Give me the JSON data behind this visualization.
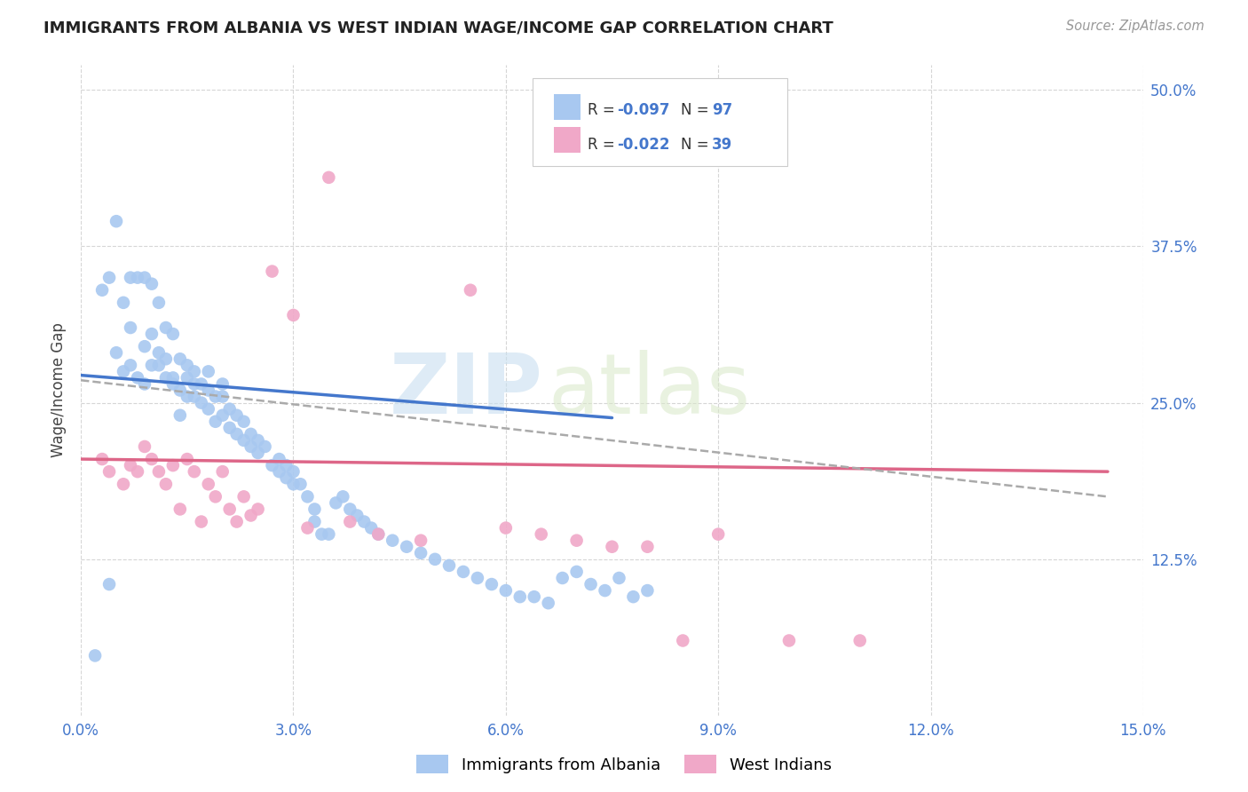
{
  "title": "IMMIGRANTS FROM ALBANIA VS WEST INDIAN WAGE/INCOME GAP CORRELATION CHART",
  "source": "Source: ZipAtlas.com",
  "ylabel": "Wage/Income Gap",
  "legend_label1": "Immigrants from Albania",
  "legend_label2": "West Indians",
  "color_blue": "#a8c8f0",
  "color_pink": "#f0a8c8",
  "color_blue_text": "#4477cc",
  "line_blue": "#4477cc",
  "line_pink": "#dd6688",
  "line_dashed": "#aaaaaa",
  "background": "#ffffff",
  "watermark_zip": "ZIP",
  "watermark_atlas": "atlas",
  "xlim": [
    0.0,
    0.15
  ],
  "ylim": [
    0.0,
    0.52
  ],
  "xtick_positions": [
    0.0,
    0.03,
    0.06,
    0.09,
    0.12,
    0.15
  ],
  "xtick_labels": [
    "0.0%",
    "3.0%",
    "6.0%",
    "9.0%",
    "12.0%",
    "15.0%"
  ],
  "ytick_positions": [
    0.125,
    0.25,
    0.375,
    0.5
  ],
  "ytick_labels": [
    "12.5%",
    "25.0%",
    "37.5%",
    "50.0%"
  ],
  "blue_line_x": [
    0.0,
    0.075
  ],
  "blue_line_y": [
    0.272,
    0.238
  ],
  "pink_line_x": [
    0.0,
    0.145
  ],
  "pink_line_y": [
    0.205,
    0.195
  ],
  "dash_line_x": [
    0.0,
    0.145
  ],
  "dash_line_y": [
    0.268,
    0.175
  ],
  "r1": "-0.097",
  "n1": "97",
  "r2": "-0.022",
  "n2": "39",
  "alb_x": [
    0.002,
    0.003,
    0.004,
    0.004,
    0.005,
    0.005,
    0.006,
    0.006,
    0.007,
    0.007,
    0.007,
    0.008,
    0.008,
    0.009,
    0.009,
    0.009,
    0.01,
    0.01,
    0.01,
    0.011,
    0.011,
    0.011,
    0.012,
    0.012,
    0.012,
    0.013,
    0.013,
    0.013,
    0.014,
    0.014,
    0.014,
    0.015,
    0.015,
    0.015,
    0.016,
    0.016,
    0.016,
    0.017,
    0.017,
    0.018,
    0.018,
    0.018,
    0.019,
    0.019,
    0.02,
    0.02,
    0.02,
    0.021,
    0.021,
    0.022,
    0.022,
    0.023,
    0.023,
    0.024,
    0.024,
    0.025,
    0.025,
    0.026,
    0.027,
    0.028,
    0.028,
    0.029,
    0.029,
    0.03,
    0.03,
    0.031,
    0.032,
    0.033,
    0.033,
    0.034,
    0.035,
    0.036,
    0.037,
    0.038,
    0.039,
    0.04,
    0.041,
    0.042,
    0.044,
    0.046,
    0.048,
    0.05,
    0.052,
    0.054,
    0.056,
    0.058,
    0.06,
    0.062,
    0.064,
    0.066,
    0.068,
    0.07,
    0.072,
    0.074,
    0.076,
    0.078,
    0.08
  ],
  "alb_y": [
    0.048,
    0.34,
    0.105,
    0.35,
    0.29,
    0.395,
    0.275,
    0.33,
    0.28,
    0.31,
    0.35,
    0.27,
    0.35,
    0.265,
    0.35,
    0.295,
    0.28,
    0.305,
    0.345,
    0.28,
    0.33,
    0.29,
    0.27,
    0.31,
    0.285,
    0.265,
    0.305,
    0.27,
    0.26,
    0.285,
    0.24,
    0.27,
    0.255,
    0.28,
    0.255,
    0.265,
    0.275,
    0.25,
    0.265,
    0.245,
    0.26,
    0.275,
    0.235,
    0.255,
    0.24,
    0.255,
    0.265,
    0.23,
    0.245,
    0.225,
    0.24,
    0.22,
    0.235,
    0.215,
    0.225,
    0.21,
    0.22,
    0.215,
    0.2,
    0.195,
    0.205,
    0.19,
    0.2,
    0.185,
    0.195,
    0.185,
    0.175,
    0.165,
    0.155,
    0.145,
    0.145,
    0.17,
    0.175,
    0.165,
    0.16,
    0.155,
    0.15,
    0.145,
    0.14,
    0.135,
    0.13,
    0.125,
    0.12,
    0.115,
    0.11,
    0.105,
    0.1,
    0.095,
    0.095,
    0.09,
    0.11,
    0.115,
    0.105,
    0.1,
    0.11,
    0.095,
    0.1
  ],
  "wi_x": [
    0.003,
    0.004,
    0.006,
    0.007,
    0.008,
    0.009,
    0.01,
    0.011,
    0.012,
    0.013,
    0.014,
    0.015,
    0.016,
    0.017,
    0.018,
    0.019,
    0.02,
    0.021,
    0.022,
    0.023,
    0.024,
    0.025,
    0.027,
    0.03,
    0.032,
    0.035,
    0.038,
    0.042,
    0.048,
    0.055,
    0.06,
    0.065,
    0.07,
    0.075,
    0.08,
    0.085,
    0.09,
    0.1,
    0.11
  ],
  "wi_y": [
    0.205,
    0.195,
    0.185,
    0.2,
    0.195,
    0.215,
    0.205,
    0.195,
    0.185,
    0.2,
    0.165,
    0.205,
    0.195,
    0.155,
    0.185,
    0.175,
    0.195,
    0.165,
    0.155,
    0.175,
    0.16,
    0.165,
    0.355,
    0.32,
    0.15,
    0.43,
    0.155,
    0.145,
    0.14,
    0.34,
    0.15,
    0.145,
    0.14,
    0.135,
    0.135,
    0.06,
    0.145,
    0.06,
    0.06
  ]
}
